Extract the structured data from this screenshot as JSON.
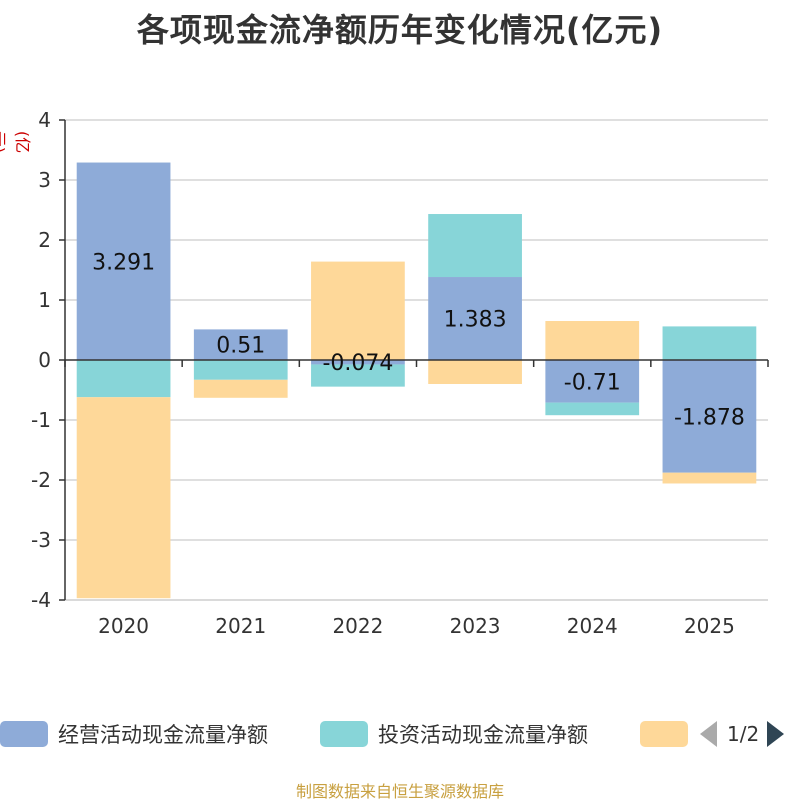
{
  "chart_data": {
    "type": "bar",
    "stacked": true,
    "title": "各项现金流净额历年变化情况(亿元)",
    "ylabel": "(亿元)",
    "xlabel": "",
    "ylim": [
      -4,
      4
    ],
    "yticks": [
      4,
      3,
      2,
      1,
      0,
      -1,
      -2,
      -3,
      -4
    ],
    "categories": [
      "2020",
      "2021",
      "2022",
      "2023",
      "2024",
      "2025"
    ],
    "grid": true,
    "legend_position": "bottom",
    "series": [
      {
        "name": "经营活动现金流量净额",
        "color": "#8eabd8",
        "values": [
          3.291,
          0.51,
          -0.074,
          1.383,
          -0.71,
          -1.878
        ],
        "labels": [
          "3.291",
          "0.51",
          "-0.074",
          "1.383",
          "-0.71",
          "-1.878"
        ]
      },
      {
        "name": "投资活动现金流量净额",
        "color": "#87d5d8",
        "values": [
          -0.62,
          -0.33,
          -0.37,
          1.05,
          -0.21,
          0.56
        ]
      },
      {
        "name": "",
        "color": "#fed899",
        "values": [
          -3.35,
          -0.3,
          1.64,
          -0.4,
          0.65,
          -0.18
        ]
      }
    ]
  },
  "legend": {
    "items": [
      {
        "label": "经营活动现金流量净额",
        "color": "#8eabd8"
      },
      {
        "label": "投资活动现金流量净额",
        "color": "#87d5d8"
      },
      {
        "label": "",
        "color": "#fed899"
      }
    ],
    "page": "1/2"
  },
  "source": "制图数据来自恒生聚源数据库"
}
